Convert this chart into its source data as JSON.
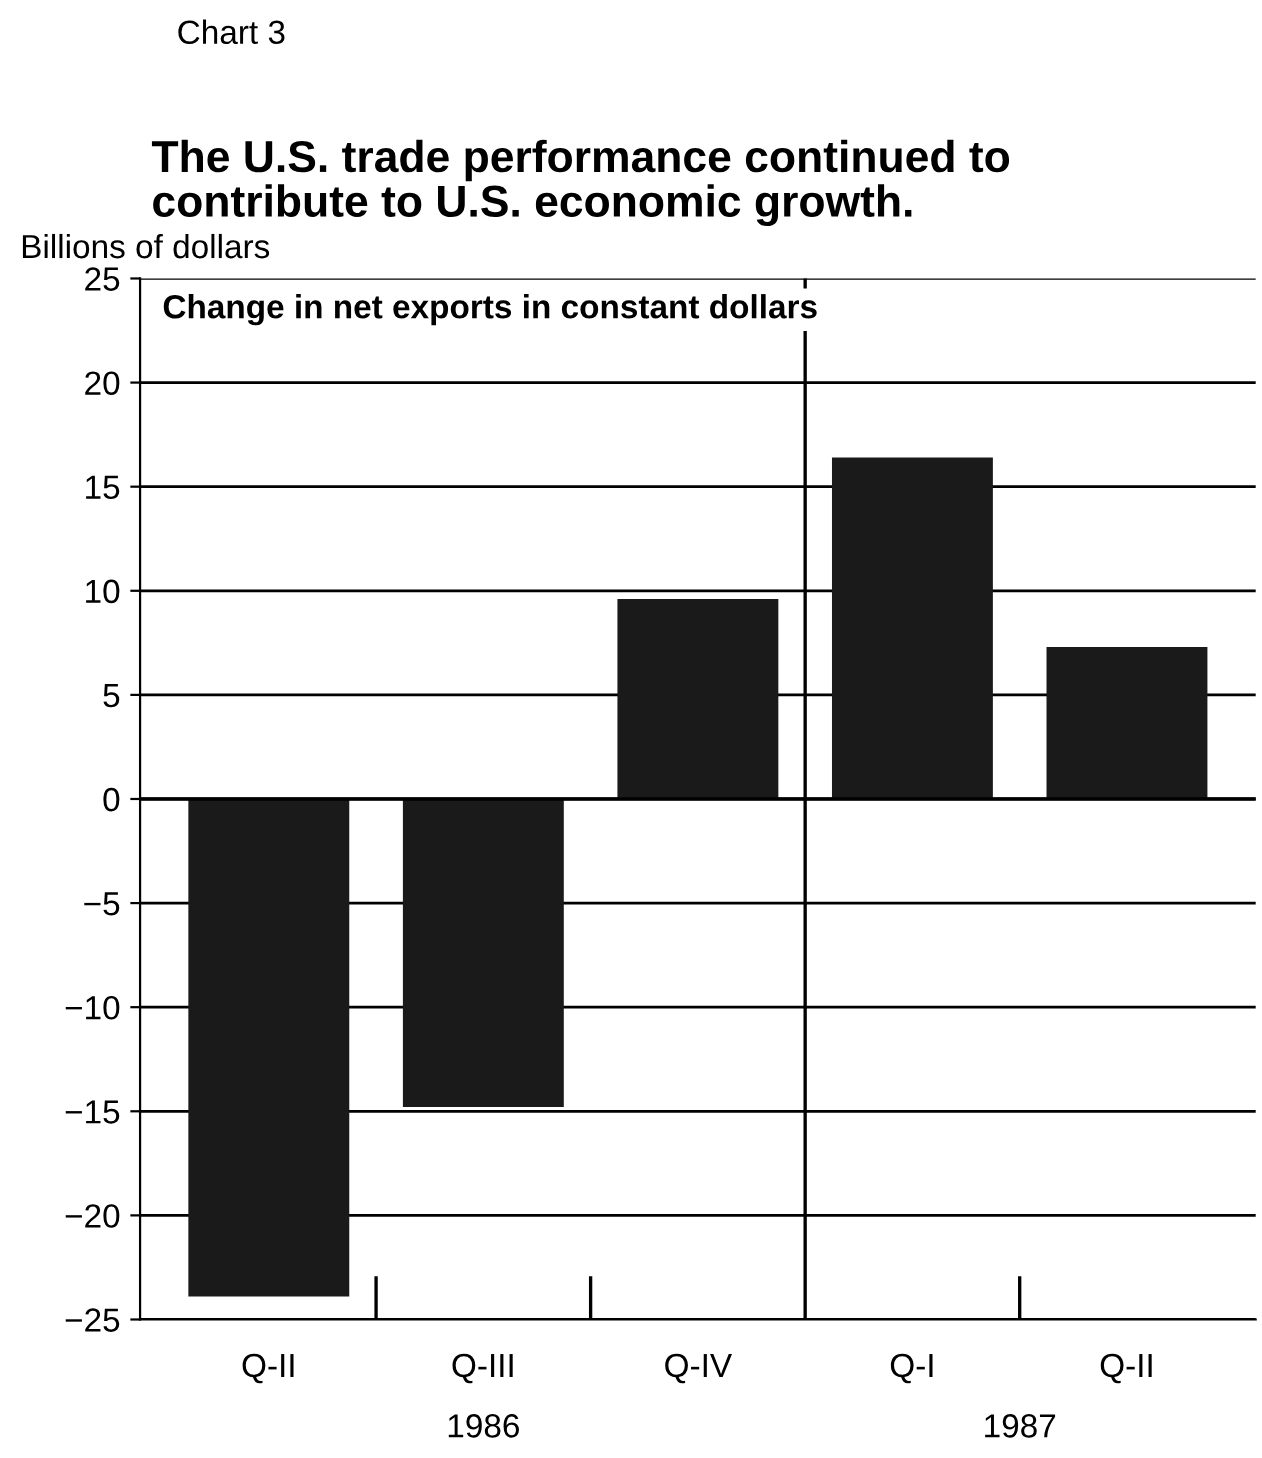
{
  "chart_data": {
    "type": "bar",
    "title": "The U.S. trade performance continued to\ncontribute to U.S. economic growth.",
    "subtitle": "Change in net exports in constant dollars",
    "ylabel": "Billions of dollars",
    "annotations": [
      "Chart 3",
      "1986",
      "1987"
    ],
    "categories": [
      "Q-II",
      "Q-III",
      "Q-IV",
      "Q-I",
      "Q-II"
    ],
    "values": [
      -23.9,
      -14.8,
      9.6,
      16.4,
      7.3
    ],
    "color": "#1a1a1a",
    "ylim": [
      -25,
      25
    ],
    "yticks": [
      -25,
      -20,
      -15,
      -10,
      -5,
      0,
      5,
      10,
      15,
      20,
      25
    ],
    "grid": "y"
  }
}
